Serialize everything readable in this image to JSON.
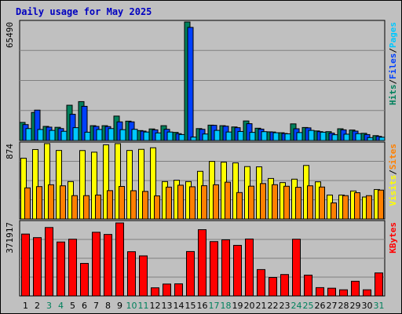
{
  "title": "Daily usage for May 2025",
  "colors": {
    "hits": "#00805c",
    "files": "#0040ff",
    "pages": "#00c8ff",
    "visits": "#ffff00",
    "sites": "#ff8000",
    "kbytes": "#ff0000",
    "title": "#0000c0",
    "weekend_day_label": "#00805c",
    "weekday_day_label": "#000000"
  },
  "legend": {
    "top": [
      {
        "label": "Hits",
        "color": "#00805c"
      },
      {
        "label": "/",
        "color": "#000000"
      },
      {
        "label": "Files",
        "color": "#0040ff"
      },
      {
        "label": "/",
        "color": "#000000"
      },
      {
        "label": "Pages",
        "color": "#00c8ff"
      }
    ],
    "middle": [
      {
        "label": "Visits",
        "color": "#ffff00"
      },
      {
        "label": "/",
        "color": "#000000"
      },
      {
        "label": "Sites",
        "color": "#ff8000"
      }
    ],
    "bottom": [
      {
        "label": "KBytes",
        "color": "#ff0000"
      }
    ]
  },
  "chart_data": [
    {
      "type": "bar",
      "name": "Hits/Files/Pages",
      "ymax_label": "65490",
      "ylim": [
        0,
        65490
      ],
      "categories": [
        "1",
        "2",
        "3",
        "4",
        "5",
        "6",
        "7",
        "8",
        "9",
        "10",
        "11",
        "12",
        "13",
        "14",
        "15",
        "16",
        "17",
        "18",
        "19",
        "20",
        "21",
        "22",
        "23",
        "24",
        "25",
        "26",
        "27",
        "28",
        "29",
        "30",
        "31"
      ],
      "series": [
        {
          "name": "Hits",
          "values": [
            10000,
            15500,
            7800,
            7300,
            19500,
            21500,
            8200,
            8200,
            13500,
            10700,
            5500,
            6400,
            8200,
            4500,
            65490,
            6600,
            8500,
            8200,
            7500,
            10800,
            6800,
            4800,
            4300,
            9200,
            7200,
            5300,
            4900,
            6500,
            5800,
            4000,
            2700
          ]
        },
        {
          "name": "Files",
          "values": [
            8800,
            16800,
            7400,
            6600,
            14500,
            18900,
            7800,
            7700,
            10300,
            10300,
            5200,
            5900,
            6200,
            3800,
            62500,
            6200,
            8400,
            7900,
            7100,
            9300,
            6300,
            4700,
            3900,
            6500,
            7000,
            4900,
            4100,
            5900,
            5200,
            3300,
            2300
          ]
        },
        {
          "name": "Pages",
          "values": [
            6600,
            6100,
            5600,
            5100,
            7100,
            4600,
            6100,
            6600,
            6000,
            6200,
            4700,
            4200,
            4700,
            3300,
            1900,
            3600,
            5600,
            4700,
            5000,
            4500,
            4900,
            4300,
            3700,
            4400,
            5600,
            4600,
            3200,
            3500,
            3800,
            1600,
            1800
          ]
        }
      ]
    },
    {
      "type": "bar",
      "name": "Visits/Sites",
      "ymax_label": "874",
      "ylim": [
        0,
        874
      ],
      "categories": [
        "1",
        "2",
        "3",
        "4",
        "5",
        "6",
        "7",
        "8",
        "9",
        "10",
        "11",
        "12",
        "13",
        "14",
        "15",
        "16",
        "17",
        "18",
        "19",
        "20",
        "21",
        "22",
        "23",
        "24",
        "25",
        "26",
        "27",
        "28",
        "29",
        "30",
        "31"
      ],
      "series": [
        {
          "name": "Visits",
          "values": [
            705,
            806,
            874,
            795,
            434,
            794,
            775,
            860,
            874,
            795,
            808,
            826,
            434,
            450,
            434,
            553,
            668,
            659,
            651,
            608,
            605,
            470,
            422,
            462,
            621,
            431,
            278,
            278,
            325,
            255,
            342
          ]
        },
        {
          "name": "Sites",
          "values": [
            361,
            376,
            397,
            385,
            271,
            271,
            278,
            329,
            378,
            328,
            320,
            268,
            370,
            392,
            374,
            386,
            397,
            427,
            307,
            381,
            411,
            398,
            380,
            368,
            385,
            371,
            187,
            271,
            305,
            271,
            335
          ]
        }
      ]
    },
    {
      "type": "bar",
      "name": "KBytes",
      "ymax_label": "371917",
      "ylim": [
        0,
        371917
      ],
      "categories": [
        "1",
        "2",
        "3",
        "4",
        "5",
        "6",
        "7",
        "8",
        "9",
        "10",
        "11",
        "12",
        "13",
        "14",
        "15",
        "16",
        "17",
        "18",
        "19",
        "20",
        "21",
        "22",
        "23",
        "24",
        "25",
        "26",
        "27",
        "28",
        "29",
        "30",
        "31"
      ],
      "series": [
        {
          "name": "KBytes",
          "values": [
            312000,
            294000,
            345000,
            272000,
            286000,
            164000,
            321000,
            310000,
            368000,
            223000,
            202000,
            41000,
            60000,
            61000,
            224000,
            334000,
            274000,
            283000,
            255000,
            287000,
            133000,
            93000,
            108000,
            286000,
            105000,
            42000,
            39000,
            31000,
            74000,
            31000,
            116000
          ]
        }
      ]
    }
  ],
  "x_axis": {
    "labels": [
      "1",
      "2",
      "3",
      "4",
      "5",
      "6",
      "7",
      "8",
      "9",
      "10",
      "11",
      "12",
      "13",
      "14",
      "15",
      "16",
      "17",
      "18",
      "19",
      "20",
      "21",
      "22",
      "23",
      "24",
      "25",
      "26",
      "27",
      "28",
      "29",
      "30",
      "31"
    ],
    "weekend_days": [
      "3",
      "4",
      "10",
      "11",
      "17",
      "18",
      "24",
      "25",
      "31"
    ]
  }
}
